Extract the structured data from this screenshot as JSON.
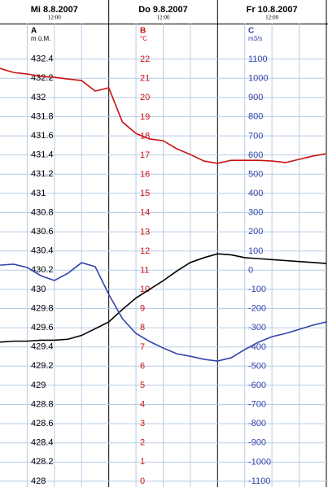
{
  "chart_data": {
    "type": "line",
    "xticks": [
      {
        "value": "2007-08-08T12:00",
        "label": "Mi  8.8.2007"
      },
      {
        "value": "2007-08-09T12:00",
        "label": "Do  9.8.2007"
      },
      {
        "value": "2007-08-10T12:00",
        "label": "Fr  10.8.2007"
      }
    ],
    "xtick_time_labels": [
      "12:00",
      "12:00",
      "12:00"
    ],
    "xlim": [
      "2007-08-08T00:00",
      "2007-08-11T00:22"
    ],
    "x": [
      "2007-08-08T00:00",
      "2007-08-08T03:00",
      "2007-08-08T06:00",
      "2007-08-08T09:00",
      "2007-08-08T12:00",
      "2007-08-08T15:00",
      "2007-08-08T18:00",
      "2007-08-08T21:00",
      "2007-08-09T00:00",
      "2007-08-09T03:00",
      "2007-08-09T06:00",
      "2007-08-09T09:00",
      "2007-08-09T12:00",
      "2007-08-09T15:00",
      "2007-08-09T18:00",
      "2007-08-09T21:00",
      "2007-08-10T00:00",
      "2007-08-10T03:00",
      "2007-08-10T06:00",
      "2007-08-10T09:00",
      "2007-08-10T12:00",
      "2007-08-10T15:00",
      "2007-08-10T18:00",
      "2007-08-10T21:00",
      "2007-08-11T00:00"
    ],
    "y_label": "A",
    "y_unit": "m ü.M.",
    "ylim": [
      427.94,
      432.77
    ],
    "yticks": [
      432.4,
      432.2,
      432,
      431.8,
      431.6,
      431.4,
      431.2,
      431,
      430.8,
      430.6,
      430.4,
      430.2,
      430,
      429.8,
      429.6,
      429.4,
      429.2,
      429,
      428.8,
      428.6,
      428.4,
      428.2,
      428
    ],
    "y2_label": "B",
    "y2_unit": "°C",
    "y2lim": [
      -0.3,
      23.87
    ],
    "y2ticks": [
      22,
      21,
      20,
      19,
      18,
      17,
      16,
      15,
      14,
      13,
      12,
      11,
      10,
      9,
      8,
      7,
      6,
      5,
      4,
      3,
      2,
      1,
      0
    ],
    "y3_label": "C",
    "y3_unit": "m3/s",
    "y3lim": [
      -1129.7,
      1286.5
    ],
    "y3ticks": [
      1100,
      1000,
      900,
      800,
      700,
      600,
      500,
      400,
      300,
      200,
      100,
      0,
      -100,
      -200,
      -300,
      -400,
      -500,
      -600,
      -700,
      -800,
      -900,
      -1000,
      -1100
    ],
    "grid": true,
    "series": [
      {
        "axis": "y",
        "color": "#000000",
        "values": [
          429.45,
          429.46,
          429.46,
          429.47,
          429.47,
          429.48,
          429.52,
          429.59,
          429.66,
          429.79,
          429.91,
          430.0,
          430.09,
          430.19,
          430.28,
          430.33,
          430.37,
          430.36,
          430.33,
          430.32,
          430.31,
          430.3,
          430.29,
          430.28,
          430.27
        ]
      },
      {
        "axis": "y2",
        "color": "#cc1111",
        "values": [
          21.53,
          21.32,
          21.24,
          21.11,
          21.07,
          20.98,
          20.9,
          20.35,
          20.52,
          18.74,
          18.14,
          17.85,
          17.76,
          17.34,
          17.04,
          16.7,
          16.58,
          16.74,
          16.74,
          16.74,
          16.7,
          16.62,
          16.79,
          16.96,
          17.08
        ]
      },
      {
        "axis": "y3",
        "color": "#3344aa",
        "values": [
          27,
          32,
          15,
          -28,
          -53,
          -15,
          40,
          19,
          -125,
          -252,
          -329,
          -371,
          -405,
          -435,
          -448,
          -464,
          -473,
          -456,
          -413,
          -375,
          -346,
          -329,
          -308,
          -286,
          -269
        ]
      }
    ]
  }
}
